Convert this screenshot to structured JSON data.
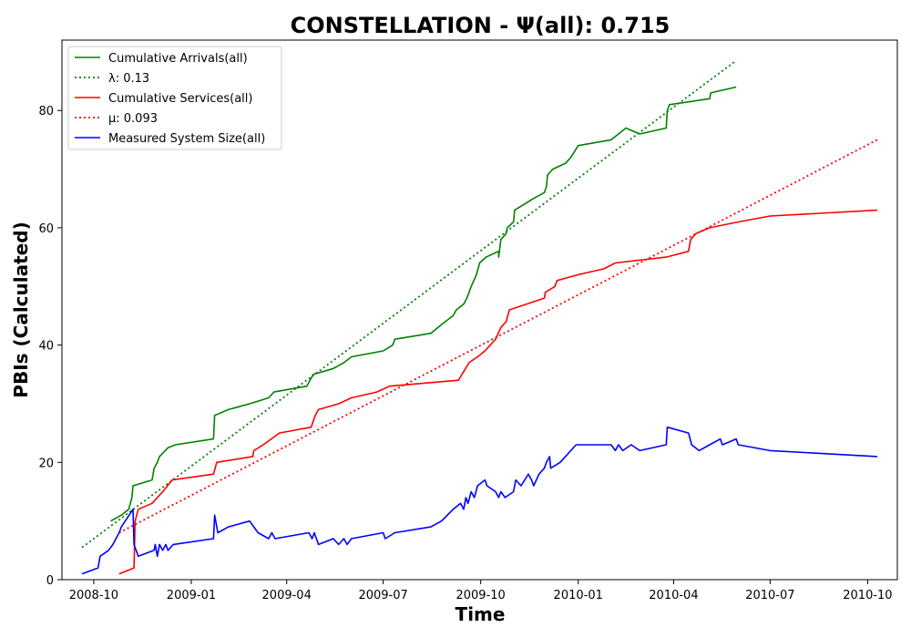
{
  "chart_data": {
    "type": "line",
    "title": "CONSTELLATION -  Ψ(all): 0.715",
    "xlabel": "Time",
    "ylabel": "PBIs (Calculated)",
    "x_type": "date",
    "xlim": [
      "2008-09-01",
      "2010-10-29"
    ],
    "ylim": [
      0,
      92
    ],
    "x_ticks": [
      "2008-10",
      "2009-01",
      "2009-04",
      "2009-07",
      "2009-10",
      "2010-01",
      "2010-04",
      "2010-07",
      "2010-10"
    ],
    "y_ticks": [
      0,
      20,
      40,
      60,
      80
    ],
    "grid": false,
    "legend_position": "top-left",
    "series": [
      {
        "name": "Cumulative Arrivals(all)",
        "color": "#008000",
        "style": "solid",
        "points": [
          [
            "2008-10-17",
            10
          ],
          [
            "2008-10-27",
            11
          ],
          [
            "2008-11-03",
            12
          ],
          [
            "2008-11-06",
            14
          ],
          [
            "2008-11-07",
            16
          ],
          [
            "2008-11-25",
            17
          ],
          [
            "2008-11-27",
            19
          ],
          [
            "2008-11-30",
            20
          ],
          [
            "2008-12-02",
            21
          ],
          [
            "2008-12-10",
            22.5
          ],
          [
            "2008-12-17",
            23
          ],
          [
            "2009-01-22",
            24
          ],
          [
            "2009-01-23",
            28
          ],
          [
            "2009-02-05",
            29
          ],
          [
            "2009-02-25",
            30
          ],
          [
            "2009-03-15",
            31
          ],
          [
            "2009-03-20",
            32
          ],
          [
            "2009-04-20",
            33
          ],
          [
            "2009-04-26",
            35
          ],
          [
            "2009-05-15",
            36
          ],
          [
            "2009-05-25",
            37
          ],
          [
            "2009-06-01",
            38
          ],
          [
            "2009-07-01",
            39
          ],
          [
            "2009-07-10",
            40
          ],
          [
            "2009-07-12",
            41
          ],
          [
            "2009-08-15",
            42
          ],
          [
            "2009-08-25",
            43.5
          ],
          [
            "2009-09-05",
            45
          ],
          [
            "2009-09-08",
            46
          ],
          [
            "2009-09-15",
            47
          ],
          [
            "2009-09-18",
            48
          ],
          [
            "2009-09-22",
            50
          ],
          [
            "2009-09-27",
            52
          ],
          [
            "2009-09-30",
            54
          ],
          [
            "2009-10-06",
            55
          ],
          [
            "2009-10-18",
            56
          ],
          [
            "2009-10-18",
            55
          ],
          [
            "2009-10-20",
            58
          ],
          [
            "2009-10-25",
            59
          ],
          [
            "2009-10-26",
            60
          ],
          [
            "2009-11-01",
            61
          ],
          [
            "2009-11-02",
            63
          ],
          [
            "2009-11-20",
            65
          ],
          [
            "2009-11-30",
            66
          ],
          [
            "2009-12-02",
            67
          ],
          [
            "2009-12-03",
            69
          ],
          [
            "2009-12-08",
            70
          ],
          [
            "2009-12-20",
            71
          ],
          [
            "2009-12-25",
            72
          ],
          [
            "2010-01-01",
            74
          ],
          [
            "2010-02-01",
            75
          ],
          [
            "2010-02-15",
            77
          ],
          [
            "2010-02-28",
            76
          ],
          [
            "2010-03-25",
            77
          ],
          [
            "2010-03-26",
            80
          ],
          [
            "2010-03-28",
            81
          ],
          [
            "2010-05-05",
            82
          ],
          [
            "2010-05-06",
            83
          ],
          [
            "2010-05-30",
            84
          ]
        ]
      },
      {
        "name": "λ: 0.13",
        "color": "#008000",
        "style": "dotted",
        "points": [
          [
            "2008-09-20",
            5.5
          ],
          [
            "2010-05-30",
            88.5
          ]
        ]
      },
      {
        "name": "Cumulative Services(all)",
        "color": "#ff0000",
        "style": "solid",
        "points": [
          [
            "2008-10-25",
            1
          ],
          [
            "2008-11-08",
            2
          ],
          [
            "2008-11-09",
            10
          ],
          [
            "2008-11-12",
            12
          ],
          [
            "2008-11-25",
            13
          ],
          [
            "2008-12-05",
            15
          ],
          [
            "2008-12-14",
            17
          ],
          [
            "2009-01-22",
            18
          ],
          [
            "2009-01-25",
            20
          ],
          [
            "2009-02-28",
            21
          ],
          [
            "2009-03-01",
            22
          ],
          [
            "2009-03-10",
            23
          ],
          [
            "2009-03-25",
            25
          ],
          [
            "2009-04-24",
            26
          ],
          [
            "2009-04-28",
            28
          ],
          [
            "2009-05-01",
            29
          ],
          [
            "2009-05-20",
            30
          ],
          [
            "2009-06-01",
            31
          ],
          [
            "2009-06-25",
            32
          ],
          [
            "2009-07-07",
            33
          ],
          [
            "2009-09-10",
            34
          ],
          [
            "2009-09-20",
            37
          ],
          [
            "2009-09-28",
            38
          ],
          [
            "2009-10-05",
            39
          ],
          [
            "2009-10-15",
            41
          ],
          [
            "2009-10-20",
            43
          ],
          [
            "2009-10-25",
            44
          ],
          [
            "2009-10-28",
            46
          ],
          [
            "2009-11-30",
            48
          ],
          [
            "2009-12-01",
            49
          ],
          [
            "2009-12-10",
            50
          ],
          [
            "2009-12-12",
            51
          ],
          [
            "2010-01-01",
            52
          ],
          [
            "2010-01-25",
            53
          ],
          [
            "2010-02-05",
            54
          ],
          [
            "2010-03-25",
            55
          ],
          [
            "2010-04-15",
            56
          ],
          [
            "2010-04-17",
            58
          ],
          [
            "2010-04-22",
            59
          ],
          [
            "2010-05-05",
            60
          ],
          [
            "2010-06-01",
            61
          ],
          [
            "2010-07-01",
            62
          ],
          [
            "2010-10-10",
            63
          ]
        ]
      },
      {
        "name": "μ: 0.093",
        "color": "#ff0000",
        "style": "dotted",
        "points": [
          [
            "2008-10-25",
            8
          ],
          [
            "2010-10-10",
            75
          ]
        ]
      },
      {
        "name": "Measured System Size(all)",
        "color": "#0000ff",
        "style": "solid",
        "points": [
          [
            "2008-09-20",
            1
          ],
          [
            "2008-10-05",
            2
          ],
          [
            "2008-10-07",
            4
          ],
          [
            "2008-10-15",
            5
          ],
          [
            "2008-10-19",
            6
          ],
          [
            "2008-10-25",
            8
          ],
          [
            "2008-10-27",
            9
          ],
          [
            "2008-11-07",
            12
          ],
          [
            "2008-11-08",
            6
          ],
          [
            "2008-11-12",
            4
          ],
          [
            "2008-11-27",
            5
          ],
          [
            "2008-11-28",
            6
          ],
          [
            "2008-11-30",
            4
          ],
          [
            "2008-12-02",
            6
          ],
          [
            "2008-12-05",
            5
          ],
          [
            "2008-12-08",
            6
          ],
          [
            "2008-12-10",
            5
          ],
          [
            "2008-12-15",
            6
          ],
          [
            "2009-01-22",
            7
          ],
          [
            "2009-01-23",
            11
          ],
          [
            "2009-01-26",
            8
          ],
          [
            "2009-02-05",
            9
          ],
          [
            "2009-02-25",
            10
          ],
          [
            "2009-03-01",
            9
          ],
          [
            "2009-03-05",
            8
          ],
          [
            "2009-03-15",
            7
          ],
          [
            "2009-03-18",
            8
          ],
          [
            "2009-03-21",
            7
          ],
          [
            "2009-04-22",
            8
          ],
          [
            "2009-04-25",
            7
          ],
          [
            "2009-04-27",
            8
          ],
          [
            "2009-05-01",
            6
          ],
          [
            "2009-05-15",
            7
          ],
          [
            "2009-05-20",
            6
          ],
          [
            "2009-05-25",
            7
          ],
          [
            "2009-05-28",
            6
          ],
          [
            "2009-06-01",
            7
          ],
          [
            "2009-07-01",
            8
          ],
          [
            "2009-07-03",
            7
          ],
          [
            "2009-07-12",
            8
          ],
          [
            "2009-08-15",
            9
          ],
          [
            "2009-08-25",
            10
          ],
          [
            "2009-09-05",
            12
          ],
          [
            "2009-09-12",
            13
          ],
          [
            "2009-09-15",
            12
          ],
          [
            "2009-09-17",
            14
          ],
          [
            "2009-09-19",
            13
          ],
          [
            "2009-09-22",
            15
          ],
          [
            "2009-09-25",
            14
          ],
          [
            "2009-09-28",
            16
          ],
          [
            "2009-10-05",
            17
          ],
          [
            "2009-10-07",
            16
          ],
          [
            "2009-10-15",
            15
          ],
          [
            "2009-10-18",
            14
          ],
          [
            "2009-10-20",
            15
          ],
          [
            "2009-10-24",
            14
          ],
          [
            "2009-11-01",
            15
          ],
          [
            "2009-11-03",
            17
          ],
          [
            "2009-11-08",
            16
          ],
          [
            "2009-11-15",
            18
          ],
          [
            "2009-11-18",
            17
          ],
          [
            "2009-11-20",
            16
          ],
          [
            "2009-11-25",
            18
          ],
          [
            "2009-11-30",
            19
          ],
          [
            "2009-12-02",
            20
          ],
          [
            "2009-12-05",
            21
          ],
          [
            "2009-12-06",
            19
          ],
          [
            "2009-12-15",
            20
          ],
          [
            "2009-12-25",
            22
          ],
          [
            "2009-12-30",
            23
          ],
          [
            "2010-02-01",
            23
          ],
          [
            "2010-02-05",
            22
          ],
          [
            "2010-02-08",
            23
          ],
          [
            "2010-02-12",
            22
          ],
          [
            "2010-02-20",
            23
          ],
          [
            "2010-02-28",
            22
          ],
          [
            "2010-03-25",
            23
          ],
          [
            "2010-03-26",
            26
          ],
          [
            "2010-04-15",
            25
          ],
          [
            "2010-04-18",
            23
          ],
          [
            "2010-04-25",
            22
          ],
          [
            "2010-05-05",
            23
          ],
          [
            "2010-05-15",
            24
          ],
          [
            "2010-05-17",
            23
          ],
          [
            "2010-05-30",
            24
          ],
          [
            "2010-06-01",
            23
          ],
          [
            "2010-07-01",
            22
          ],
          [
            "2010-10-10",
            21
          ]
        ]
      }
    ]
  }
}
